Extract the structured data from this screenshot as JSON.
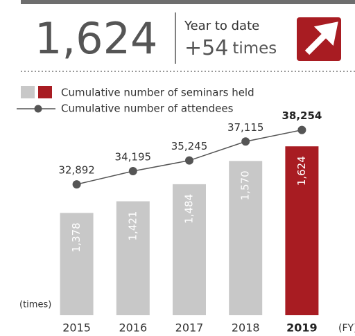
{
  "header": {
    "total": "1,624",
    "label": "Year to date",
    "change": "+54",
    "unit": "times"
  },
  "chart_data": {
    "type": "bar",
    "categories": [
      "2015",
      "2016",
      "2017",
      "2018",
      "2019"
    ],
    "highlight_index": 4,
    "unit_label": "(times)",
    "x_unit": "(FY)",
    "ylim": [
      1000,
      1750
    ],
    "y2lim": [
      20000,
      40000
    ],
    "series": [
      {
        "name": "Cumulative number of seminars held",
        "type": "bar",
        "colors": [
          "#c8c8c8",
          "#c8c8c8",
          "#c8c8c8",
          "#c8c8c8",
          "#a81c22"
        ],
        "values": [
          1378,
          1421,
          1484,
          1570,
          1624
        ],
        "value_labels": [
          "1,378",
          "1,421",
          "1,484",
          "1,570",
          "1,624"
        ]
      },
      {
        "name": "Cumulative number of attendees",
        "type": "line",
        "axis": "y2",
        "color": "#555555",
        "values": [
          32892,
          34195,
          35245,
          37115,
          38254
        ],
        "value_labels": [
          "32,892",
          "34,195",
          "35,245",
          "37,115",
          "38,254"
        ]
      }
    ]
  }
}
